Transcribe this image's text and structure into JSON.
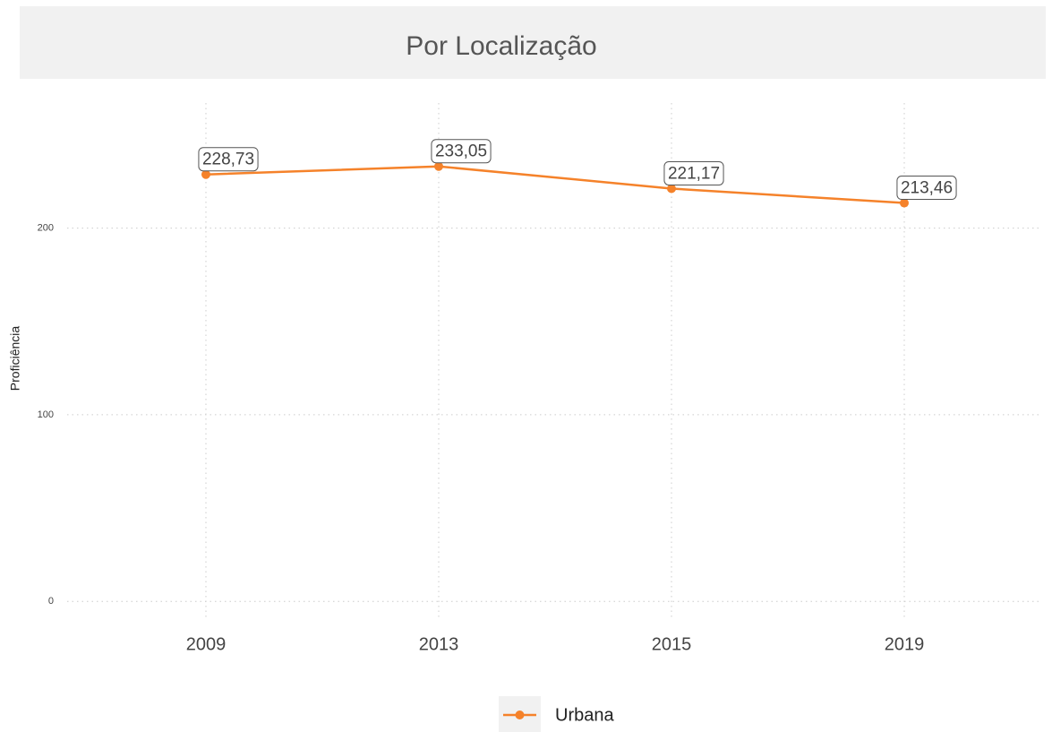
{
  "chart_data": {
    "type": "line",
    "title": "Por Localização",
    "y_label": "Proficiência",
    "categories": [
      "2009",
      "2013",
      "2015",
      "2019"
    ],
    "series": [
      {
        "name": "Urbana",
        "color": "#f5822a",
        "values": [
          228.73,
          233.05,
          221.17,
          213.46
        ],
        "value_labels": [
          "228,73",
          "233,05",
          "221,17",
          "213,46"
        ]
      }
    ],
    "ylim": [
      -9,
      267
    ],
    "yticks": [
      0,
      100,
      200
    ],
    "grid": true,
    "legend": "bottom"
  }
}
